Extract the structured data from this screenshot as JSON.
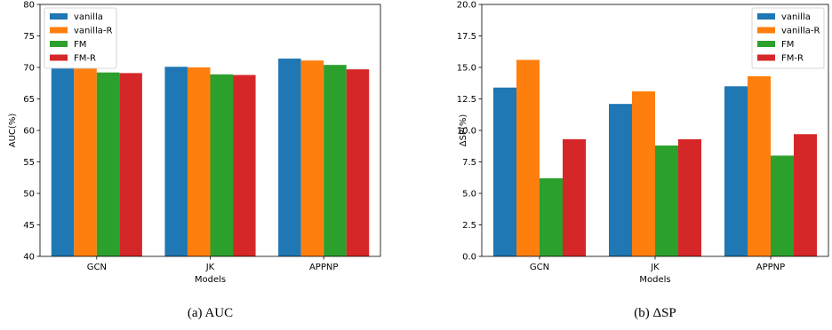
{
  "captions": [
    "(a)  AUC",
    "(b)  ΔSP"
  ],
  "series_colors": [
    "#1f77b4",
    "#ff7f0e",
    "#2ca02c",
    "#d62728"
  ],
  "chart_data": [
    {
      "type": "bar",
      "categories": [
        "GCN",
        "JK",
        "APPNP"
      ],
      "series": [
        {
          "name": "vanilla",
          "values": [
            70.0,
            70.1,
            71.4
          ]
        },
        {
          "name": "vanilla-R",
          "values": [
            69.9,
            70.0,
            71.1
          ]
        },
        {
          "name": "FM",
          "values": [
            69.2,
            68.9,
            70.4
          ]
        },
        {
          "name": "FM-R",
          "values": [
            69.1,
            68.8,
            69.7
          ]
        }
      ],
      "xlabel": "Models",
      "ylabel": "AUC(%)",
      "ylim": [
        40,
        80
      ],
      "yticks": [
        "40",
        "45",
        "50",
        "55",
        "60",
        "65",
        "70",
        "75",
        "80"
      ],
      "legend": "top-left",
      "grid": false
    },
    {
      "type": "bar",
      "categories": [
        "GCN",
        "JK",
        "APPNP"
      ],
      "series": [
        {
          "name": "vanilla",
          "values": [
            13.4,
            12.1,
            13.5
          ]
        },
        {
          "name": "vanilla-R",
          "values": [
            15.6,
            13.1,
            14.3
          ]
        },
        {
          "name": "FM",
          "values": [
            6.2,
            8.8,
            8.0
          ]
        },
        {
          "name": "FM-R",
          "values": [
            9.3,
            9.3,
            9.7
          ]
        }
      ],
      "xlabel": "Models",
      "ylabel": "ΔSP(%)",
      "ylim": [
        0,
        20
      ],
      "yticks": [
        "0.0",
        "2.5",
        "5.0",
        "7.5",
        "10.0",
        "12.5",
        "15.0",
        "17.5",
        "20.0"
      ],
      "legend": "top-right",
      "grid": false
    }
  ]
}
